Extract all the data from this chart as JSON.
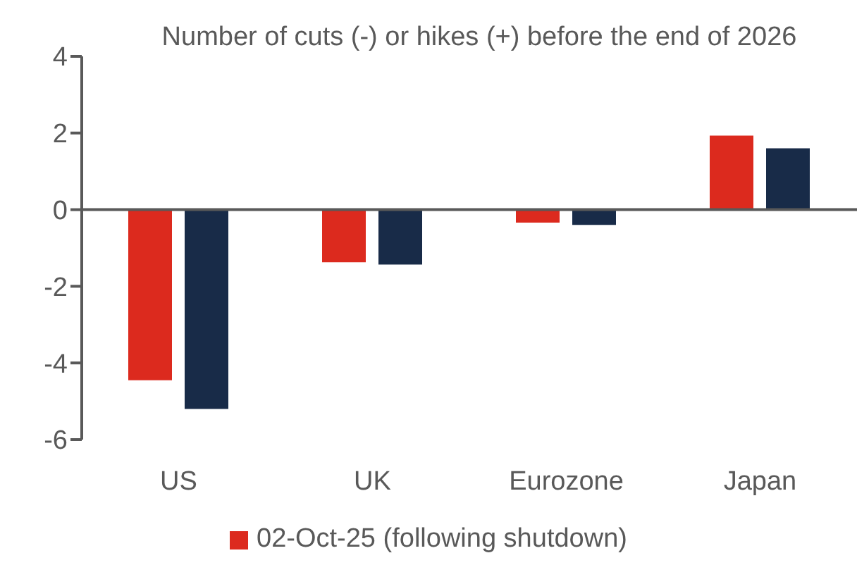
{
  "chart_data": {
    "type": "bar",
    "title": "Number of cuts (-) or hikes (+) before the end of 2026",
    "categories": [
      "US",
      "UK",
      "Eurozone",
      "Japan"
    ],
    "series": [
      {
        "name": "02-Oct-25 (following shutdown)",
        "color": "#dc2a1e",
        "values": [
          -4.45,
          -1.37,
          -0.34,
          1.93
        ]
      },
      {
        "color": "#182b48",
        "values": [
          -5.2,
          -1.43,
          -0.4,
          1.6
        ]
      }
    ],
    "ylim": [
      -6,
      4
    ],
    "yticks": [
      -6,
      -4,
      -2,
      0,
      2,
      4
    ],
    "legend": "bottom",
    "ref_lines": [
      {
        "axis": "y",
        "value": 0,
        "color": "#595959"
      }
    ]
  }
}
